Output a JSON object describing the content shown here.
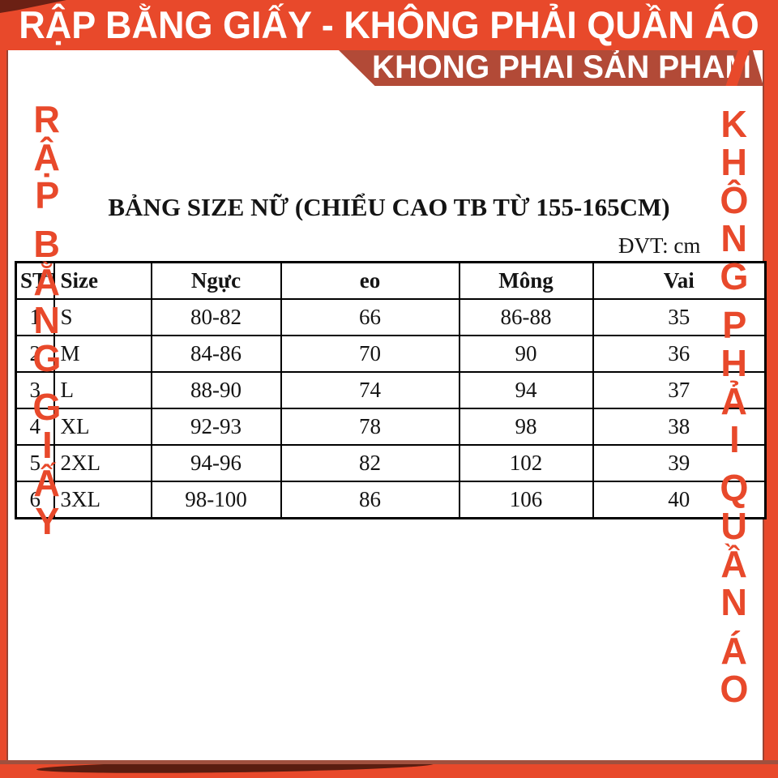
{
  "colors": {
    "orange": "#E8492B",
    "dark_red": "#B24A37",
    "maroon": "#5A1D10",
    "ink": "#141414"
  },
  "top_banner": {
    "text": "RẬP BẰNG GIẤY - KHÔNG PHẢI QUẦN ÁO"
  },
  "sub_banner": {
    "text": "KHONG PHAI SẢN PHAM"
  },
  "left_watermark": {
    "text": "RẬP BẰNG GIẤY",
    "words": [
      "RẬP",
      "BẰNG",
      "GIẤY"
    ]
  },
  "right_watermark": {
    "text": "KHÔNG PHẢI QUẦN ÁO",
    "words": [
      "KHÔNG",
      "PHẢI",
      "QUẦN",
      "ÁO"
    ]
  },
  "size_chart": {
    "title": "BẢNG SIZE NỮ (CHIỂU CAO TB TỪ 155-165CM)",
    "unit": "ĐVT: cm",
    "columns": [
      "STT",
      "Size",
      "Ngực",
      "eo",
      "Mông",
      "Vai"
    ],
    "rows": [
      [
        "1",
        "S",
        "80-82",
        "66",
        "86-88",
        "35"
      ],
      [
        "2",
        "M",
        "84-86",
        "70",
        "90",
        "36"
      ],
      [
        "3",
        "L",
        "88-90",
        "74",
        "94",
        "37"
      ],
      [
        "4",
        "XL",
        "92-93",
        "78",
        "98",
        "38"
      ],
      [
        "5",
        "2XL",
        "94-96",
        "82",
        "102",
        "39"
      ],
      [
        "6",
        "3XL",
        "98-100",
        "86",
        "106",
        "40"
      ]
    ]
  }
}
